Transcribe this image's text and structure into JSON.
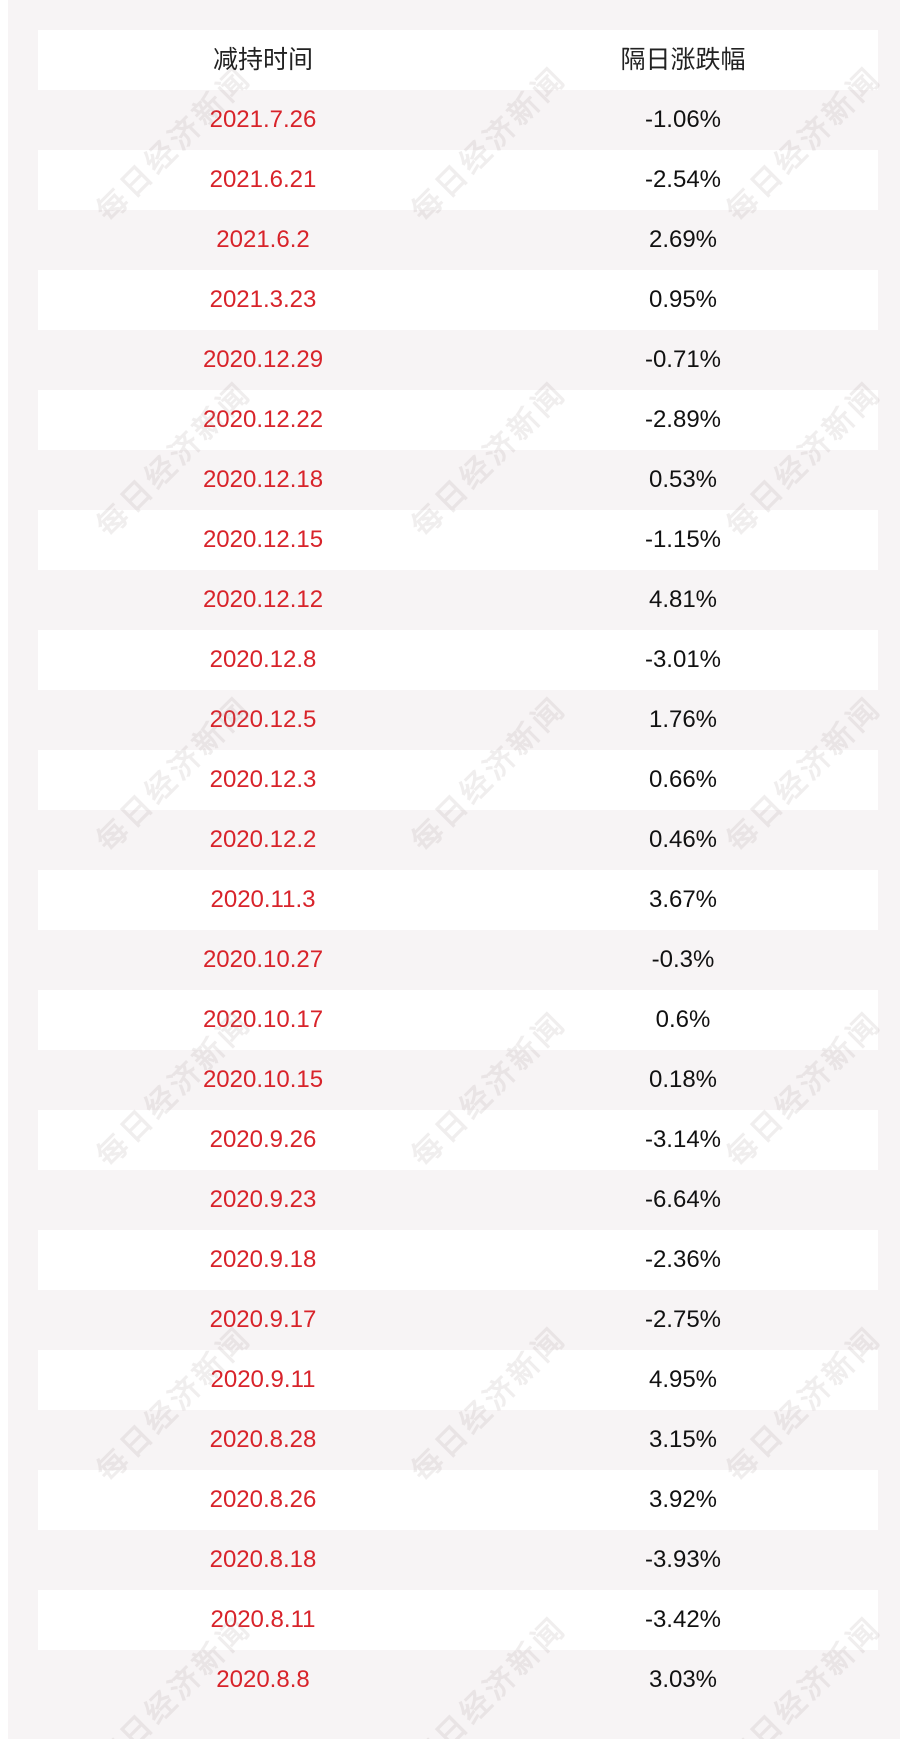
{
  "table": {
    "headers": [
      "减持时间",
      "隔日涨跌幅"
    ],
    "rows": [
      {
        "date": "2021.7.26",
        "change": "-1.06%"
      },
      {
        "date": "2021.6.21",
        "change": "-2.54%"
      },
      {
        "date": "2021.6.2",
        "change": "2.69%"
      },
      {
        "date": "2021.3.23",
        "change": "0.95%"
      },
      {
        "date": "2020.12.29",
        "change": "-0.71%"
      },
      {
        "date": "2020.12.22",
        "change": "-2.89%"
      },
      {
        "date": "2020.12.18",
        "change": "0.53%"
      },
      {
        "date": "2020.12.15",
        "change": "-1.15%"
      },
      {
        "date": "2020.12.12",
        "change": "4.81%"
      },
      {
        "date": "2020.12.8",
        "change": "-3.01%"
      },
      {
        "date": "2020.12.5",
        "change": "1.76%"
      },
      {
        "date": "2020.12.3",
        "change": "0.66%"
      },
      {
        "date": "2020.12.2",
        "change": "0.46%"
      },
      {
        "date": "2020.11.3",
        "change": "3.67%"
      },
      {
        "date": "2020.10.27",
        "change": "-0.3%"
      },
      {
        "date": "2020.10.17",
        "change": "0.6%"
      },
      {
        "date": "2020.10.15",
        "change": "0.18%"
      },
      {
        "date": "2020.9.26",
        "change": "-3.14%"
      },
      {
        "date": "2020.9.23",
        "change": "-6.64%"
      },
      {
        "date": "2020.9.18",
        "change": "-2.36%"
      },
      {
        "date": "2020.9.17",
        "change": "-2.75%"
      },
      {
        "date": "2020.9.11",
        "change": "4.95%"
      },
      {
        "date": "2020.8.28",
        "change": "3.15%"
      },
      {
        "date": "2020.8.26",
        "change": "3.92%"
      },
      {
        "date": "2020.8.18",
        "change": "-3.93%"
      },
      {
        "date": "2020.8.11",
        "change": "-3.42%"
      },
      {
        "date": "2020.8.8",
        "change": "3.03%"
      }
    ]
  },
  "watermark": "每日经济新闻",
  "colors": {
    "date_text": "#d8232a",
    "value_text": "#111111",
    "row_alt": "#f7f4f5",
    "row_white": "#ffffff"
  }
}
